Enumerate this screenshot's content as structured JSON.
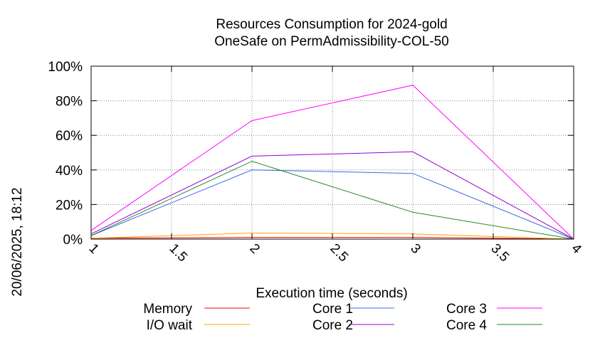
{
  "chart_data": {
    "type": "line",
    "title": [
      "Resources Consumption for 2024-gold",
      "OneSafe on PermAdmissibility-COL-50"
    ],
    "xlabel": "Execution time (seconds)",
    "ylabel": "",
    "side_label": "20/06/2025, 18:12",
    "xlim": [
      1,
      4
    ],
    "ylim": [
      0,
      100
    ],
    "x_ticks": [
      1,
      1.5,
      2,
      2.5,
      3,
      3.5,
      4
    ],
    "x_tick_labels": [
      "1",
      "1.5",
      "2",
      "2.5",
      "3",
      "3.5",
      "4"
    ],
    "y_ticks": [
      0,
      20,
      40,
      60,
      80,
      100
    ],
    "y_tick_labels": [
      "0%",
      "20%",
      "40%",
      "60%",
      "80%",
      "100%"
    ],
    "grid": true,
    "legend_position": "bottom",
    "series": [
      {
        "name": "Memory",
        "color": "#ff0000",
        "x": [
          1,
          2,
          3,
          4
        ],
        "y": [
          0.5,
          1.0,
          1.0,
          0.0
        ]
      },
      {
        "name": "I/O wait",
        "color": "#ffa500",
        "x": [
          1,
          2,
          3,
          4
        ],
        "y": [
          0.5,
          3.5,
          3.0,
          0.0
        ]
      },
      {
        "name": "Core 1",
        "color": "#4169e1",
        "x": [
          1,
          2,
          3,
          4
        ],
        "y": [
          2,
          40,
          38,
          0
        ]
      },
      {
        "name": "Core 2",
        "color": "#9400d3",
        "x": [
          1,
          2,
          3,
          4
        ],
        "y": [
          3,
          48,
          50.5,
          0
        ]
      },
      {
        "name": "Core 3",
        "color": "#ff00ff",
        "x": [
          1,
          2,
          3,
          4
        ],
        "y": [
          5,
          68.5,
          89,
          0
        ]
      },
      {
        "name": "Core 4",
        "color": "#228b22",
        "x": [
          1,
          2,
          3,
          4
        ],
        "y": [
          2,
          45,
          15.5,
          0
        ]
      }
    ]
  }
}
